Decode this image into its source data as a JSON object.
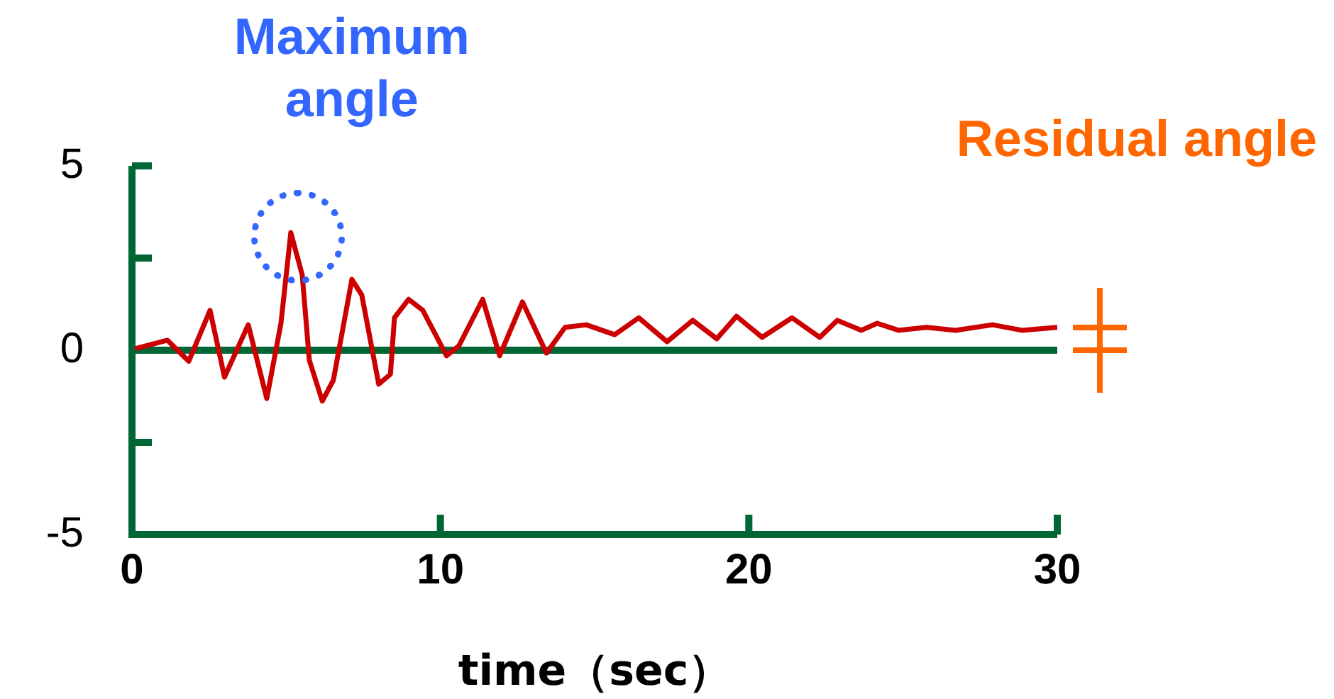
{
  "chart_data": {
    "type": "line",
    "xlabel": "time（sec）",
    "xlim": [
      0,
      30
    ],
    "xticks": [
      0,
      10,
      20,
      30
    ],
    "ylim": [
      -5,
      5
    ],
    "yticks": [
      -5,
      {
        "value": -2.5,
        "label": null
      },
      0,
      {
        "value": 2.5,
        "label": null
      },
      5
    ],
    "grid": false,
    "legend": false,
    "marker": "none",
    "line_style": "solid",
    "series": [
      {
        "color": "#cc0000",
        "x": [
          0.1,
          1.15,
          1.84,
          2.53,
          3.0,
          3.77,
          4.37,
          4.83,
          5.15,
          5.52,
          5.75,
          6.17,
          6.53,
          7.13,
          7.45,
          8.0,
          8.38,
          8.51,
          8.97,
          9.43,
          10.2,
          10.6,
          11.37,
          11.92,
          12.66,
          13.44,
          14.04,
          14.73,
          15.65,
          16.43,
          17.35,
          18.18,
          18.96,
          19.6,
          20.43,
          21.4,
          22.3,
          22.87,
          23.65,
          24.16,
          24.85,
          25.77,
          26.7,
          27.9,
          28.85,
          30
        ],
        "values": [
          0.04,
          0.27,
          -0.3,
          1.08,
          -0.73,
          0.69,
          -1.31,
          0.73,
          3.19,
          2.04,
          -0.27,
          -1.38,
          -0.81,
          1.92,
          1.5,
          -0.92,
          -0.65,
          0.88,
          1.38,
          1.08,
          -0.15,
          0.12,
          1.38,
          -0.15,
          1.31,
          -0.08,
          0.62,
          0.69,
          0.42,
          0.88,
          0.23,
          0.81,
          0.31,
          0.92,
          0.35,
          0.88,
          0.35,
          0.81,
          0.54,
          0.73,
          0.54,
          0.62,
          0.54,
          0.69,
          0.54,
          0.62
        ]
      }
    ],
    "ref_lines": [
      {
        "axis": "y",
        "value": 0,
        "color": "#006633"
      }
    ],
    "annotations": [
      {
        "text": "Maximum angle",
        "x": 5.15,
        "y": 3.19
      },
      "Residual angle"
    ]
  }
}
